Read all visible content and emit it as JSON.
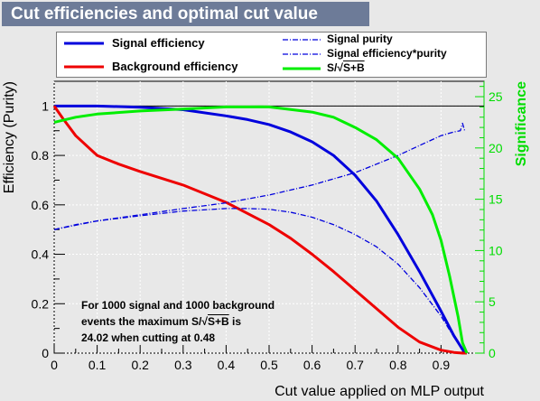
{
  "title": "Cut efficiencies and optimal cut value",
  "legend": {
    "signal_eff": "Signal efficiency",
    "background_eff": "Background efficiency",
    "signal_purity": "Signal purity",
    "eff_purity": "Signal efficiency*purity",
    "significance_prefix": "S/",
    "significance_root": "S+B"
  },
  "annotation": {
    "line1": "For 1000 signal and 1000 background",
    "line2_prefix": "events the maximum S/",
    "line2_root": "S+B",
    "line2_suffix": " is",
    "line3": "24.02 when cutting at  0.48"
  },
  "chart_data": {
    "type": "line",
    "xlabel": "Cut value applied on MLP output",
    "ylabel": "Efficiency (Purity)",
    "y2label": "Significance",
    "xlim": [
      0,
      1
    ],
    "ylim": [
      0,
      1.1
    ],
    "y2lim": [
      0,
      26.5
    ],
    "x_ticks": [
      "0",
      "0.1",
      "0.2",
      "0.3",
      "0.4",
      "0.5",
      "0.6",
      "0.7",
      "0.8",
      "0.9"
    ],
    "y_ticks": [
      "0",
      "0.2",
      "0.4",
      "0.6",
      "0.8",
      "1"
    ],
    "y2_ticks": [
      "0",
      "5",
      "10",
      "15",
      "20",
      "25"
    ],
    "reference_line_y": 1.0,
    "colors": {
      "signal": "#0000dd",
      "background": "#ee0000",
      "significance": "#00ee00",
      "axis": "#000000",
      "significance_axis": "#00dd00"
    },
    "series": [
      {
        "name": "Signal efficiency",
        "axis": "left",
        "style": "solid",
        "x": [
          0,
          0.05,
          0.1,
          0.2,
          0.3,
          0.4,
          0.45,
          0.5,
          0.55,
          0.6,
          0.65,
          0.7,
          0.75,
          0.8,
          0.85,
          0.9,
          0.93,
          0.95,
          0.96
        ],
        "y": [
          1.0,
          1.0,
          1.0,
          0.995,
          0.985,
          0.96,
          0.945,
          0.925,
          0.895,
          0.855,
          0.8,
          0.72,
          0.615,
          0.48,
          0.33,
          0.17,
          0.07,
          0.015,
          0.0
        ]
      },
      {
        "name": "Background efficiency",
        "axis": "left",
        "style": "solid",
        "x": [
          0,
          0.02,
          0.05,
          0.1,
          0.15,
          0.2,
          0.3,
          0.4,
          0.5,
          0.55,
          0.6,
          0.65,
          0.7,
          0.75,
          0.8,
          0.85,
          0.9,
          0.93,
          0.95,
          0.96
        ],
        "y": [
          1.0,
          0.95,
          0.88,
          0.8,
          0.765,
          0.735,
          0.68,
          0.61,
          0.52,
          0.465,
          0.4,
          0.33,
          0.255,
          0.18,
          0.105,
          0.045,
          0.012,
          0.003,
          0.0,
          0.0
        ]
      },
      {
        "name": "Signal purity",
        "axis": "left",
        "style": "dashdot",
        "x": [
          0,
          0.05,
          0.1,
          0.2,
          0.3,
          0.4,
          0.5,
          0.6,
          0.7,
          0.75,
          0.8,
          0.85,
          0.9,
          0.93,
          0.945,
          0.95,
          0.955
        ],
        "y": [
          0.5,
          0.52,
          0.535,
          0.56,
          0.585,
          0.608,
          0.64,
          0.68,
          0.73,
          0.765,
          0.8,
          0.84,
          0.88,
          0.895,
          0.9,
          0.93,
          0.9
        ]
      },
      {
        "name": "Signal efficiency*purity",
        "axis": "left",
        "style": "dashdot",
        "x": [
          0,
          0.1,
          0.2,
          0.3,
          0.4,
          0.45,
          0.5,
          0.55,
          0.6,
          0.65,
          0.7,
          0.75,
          0.8,
          0.85,
          0.9,
          0.93,
          0.95,
          0.96
        ],
        "y": [
          0.5,
          0.535,
          0.556,
          0.575,
          0.585,
          0.585,
          0.582,
          0.57,
          0.55,
          0.52,
          0.48,
          0.43,
          0.36,
          0.265,
          0.15,
          0.065,
          0.015,
          0.0
        ]
      },
      {
        "name": "S/√S+B",
        "axis": "right",
        "style": "solid",
        "x": [
          0,
          0.05,
          0.1,
          0.2,
          0.3,
          0.4,
          0.45,
          0.48,
          0.5,
          0.6,
          0.65,
          0.7,
          0.75,
          0.8,
          0.85,
          0.88,
          0.9,
          0.92,
          0.94,
          0.95,
          0.96
        ],
        "y": [
          22.5,
          23.0,
          23.3,
          23.6,
          23.8,
          24.0,
          24.0,
          24.02,
          24.0,
          23.5,
          23.0,
          22.0,
          20.8,
          19.0,
          16.0,
          13.5,
          11.0,
          7.5,
          3.5,
          1.0,
          0.0
        ]
      }
    ]
  }
}
